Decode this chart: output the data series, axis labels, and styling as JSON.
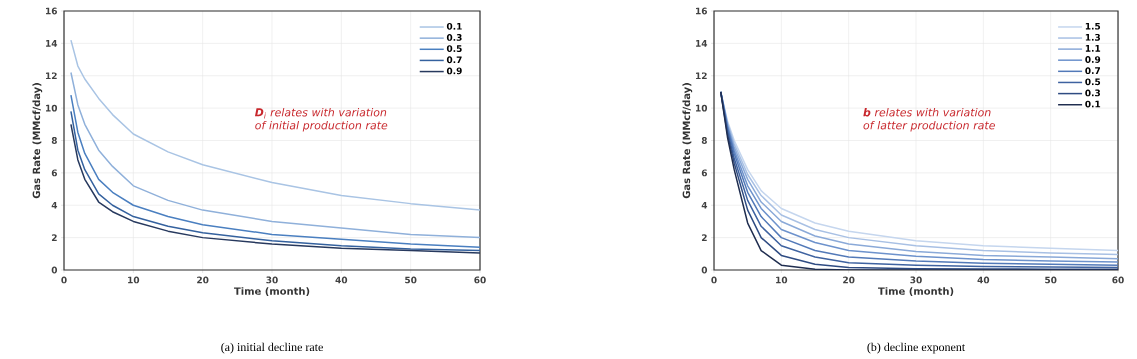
{
  "chart_data": [
    {
      "type": "line",
      "title": "(a) initial decline rate",
      "xlabel": "Time (month)",
      "ylabel": "Gas Rate (MMcf/day)",
      "annotations": [
        "**D**$_{i}$ relates with variation of initial production rate"
      ],
      "x": [
        1,
        2,
        3,
        5,
        7,
        10,
        15,
        20,
        30,
        40,
        50,
        60
      ],
      "series": [
        {
          "name": "0.1",
          "color": "#a9c4e4",
          "values": [
            14.2,
            12.6,
            11.8,
            10.6,
            9.6,
            8.4,
            7.3,
            6.5,
            5.4,
            4.6,
            4.1,
            3.7
          ]
        },
        {
          "name": "0.3",
          "color": "#8fb0da",
          "values": [
            12.2,
            10.2,
            9.0,
            7.4,
            6.4,
            5.2,
            4.3,
            3.7,
            3.0,
            2.6,
            2.2,
            2.0
          ]
        },
        {
          "name": "0.5",
          "color": "#4a7fc0",
          "values": [
            10.8,
            8.5,
            7.2,
            5.6,
            4.8,
            4.0,
            3.3,
            2.8,
            2.2,
            1.9,
            1.6,
            1.4
          ]
        },
        {
          "name": "0.7",
          "color": "#34619e",
          "values": [
            9.8,
            7.4,
            6.2,
            4.7,
            4.0,
            3.3,
            2.7,
            2.3,
            1.8,
            1.5,
            1.3,
            1.2
          ]
        },
        {
          "name": "0.9",
          "color": "#27395e",
          "values": [
            9.0,
            6.8,
            5.6,
            4.2,
            3.6,
            3.0,
            2.4,
            2.0,
            1.6,
            1.35,
            1.2,
            1.05
          ]
        }
      ],
      "xlim": [
        0,
        60
      ],
      "ylim": [
        0,
        16
      ],
      "xticks": [
        0,
        10,
        20,
        30,
        40,
        50,
        60
      ],
      "yticks": [
        0,
        2,
        4,
        6,
        8,
        10,
        12,
        14,
        16
      ],
      "grid": true,
      "legend": "top right",
      "marker": "none",
      "line_style": "solid"
    },
    {
      "type": "line",
      "title": "(b) decline exponent",
      "xlabel": "Time (month)",
      "ylabel": "Gas Rate (MMcf/day)",
      "annotations": [
        "**b** relates with variation of latter production rate"
      ],
      "x": [
        1,
        2,
        3,
        5,
        7,
        10,
        15,
        20,
        30,
        40,
        50,
        60
      ],
      "series": [
        {
          "name": "1.5",
          "color": "#c5d6ee",
          "values": [
            11.0,
            9.2,
            8.0,
            6.2,
            4.9,
            3.8,
            2.9,
            2.4,
            1.8,
            1.5,
            1.35,
            1.2
          ]
        },
        {
          "name": "1.3",
          "color": "#a8c0e4",
          "values": [
            11.0,
            9.1,
            7.8,
            5.9,
            4.6,
            3.4,
            2.5,
            2.0,
            1.5,
            1.2,
            1.05,
            0.95
          ]
        },
        {
          "name": "1.1",
          "color": "#8aa9d8",
          "values": [
            11.0,
            9.0,
            7.6,
            5.6,
            4.2,
            3.0,
            2.1,
            1.6,
            1.15,
            0.9,
            0.8,
            0.7
          ]
        },
        {
          "name": "0.9",
          "color": "#6d92cc",
          "values": [
            11.0,
            8.9,
            7.4,
            5.2,
            3.8,
            2.5,
            1.7,
            1.2,
            0.85,
            0.65,
            0.55,
            0.5
          ]
        },
        {
          "name": "0.7",
          "color": "#5279b8",
          "values": [
            11.0,
            8.8,
            7.2,
            4.8,
            3.3,
            2.0,
            1.2,
            0.8,
            0.55,
            0.42,
            0.35,
            0.3
          ]
        },
        {
          "name": "0.5",
          "color": "#3e62a0",
          "values": [
            11.0,
            8.6,
            6.9,
            4.3,
            2.7,
            1.5,
            0.8,
            0.45,
            0.3,
            0.22,
            0.18,
            0.15
          ]
        },
        {
          "name": "0.3",
          "color": "#2e4b82",
          "values": [
            11.0,
            8.4,
            6.6,
            3.7,
            2.0,
            0.9,
            0.35,
            0.15,
            0.08,
            0.06,
            0.05,
            0.04
          ]
        },
        {
          "name": "0.1",
          "color": "#1f2d4f",
          "values": [
            11.0,
            8.2,
            6.2,
            2.9,
            1.2,
            0.3,
            0.05,
            0.0,
            0.0,
            0.0,
            0.0,
            0.0
          ]
        }
      ],
      "xlim": [
        0,
        60
      ],
      "ylim": [
        0,
        16
      ],
      "xticks": [
        0,
        10,
        20,
        30,
        40,
        50,
        60
      ],
      "yticks": [
        0,
        2,
        4,
        6,
        8,
        10,
        12,
        14,
        16
      ],
      "grid": true,
      "legend": "top right",
      "marker": "none",
      "line_style": "solid"
    }
  ]
}
